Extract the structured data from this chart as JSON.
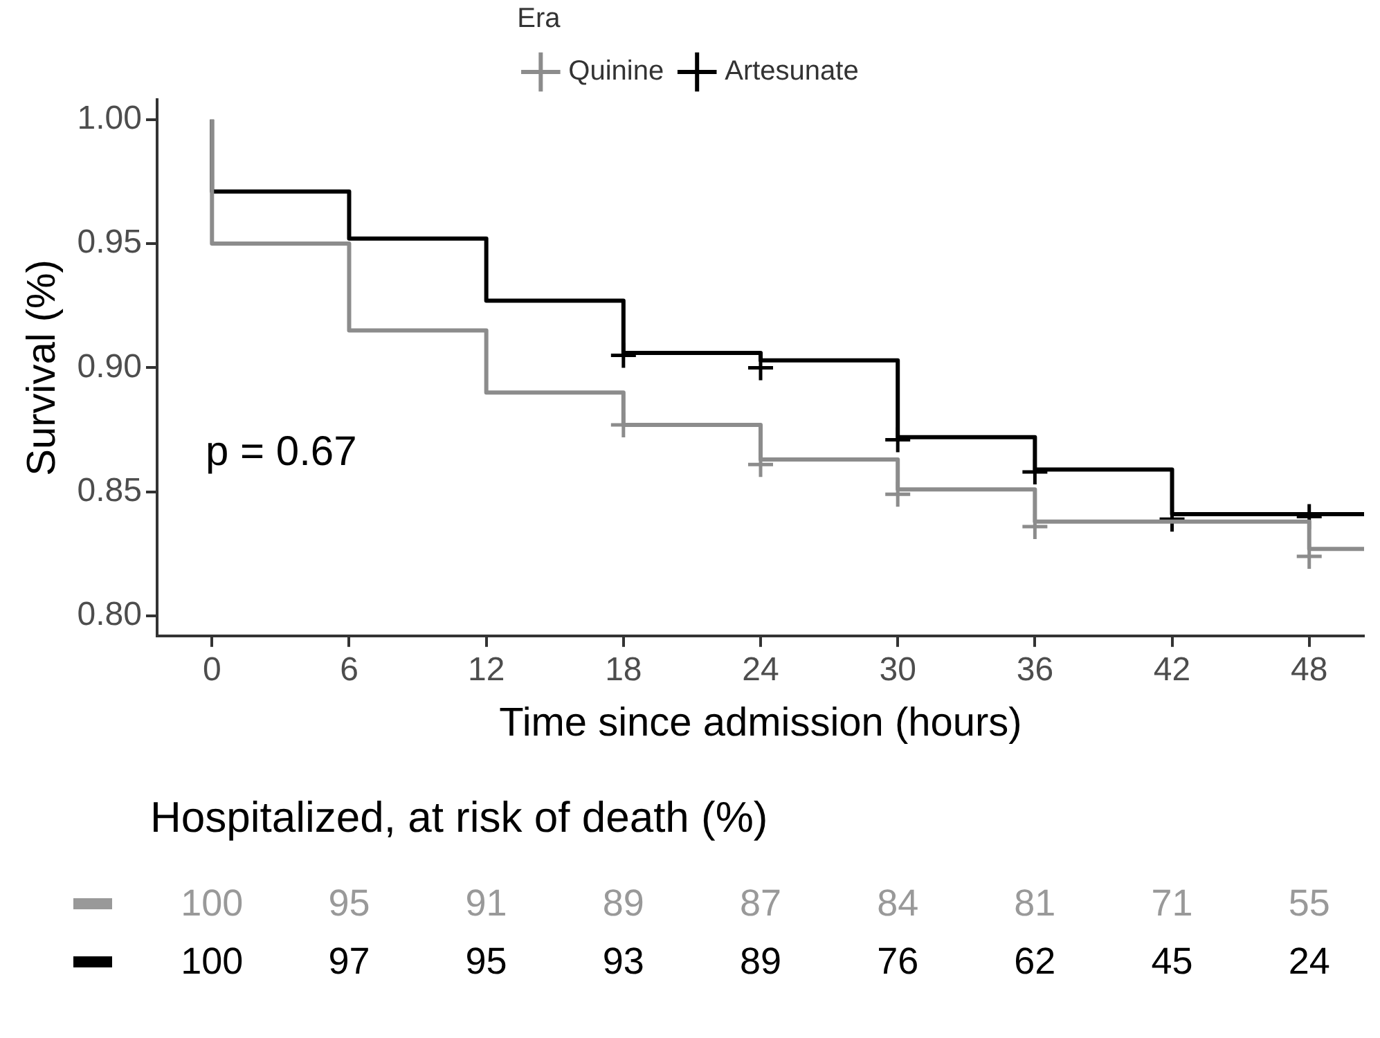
{
  "chart_data": [
    {
      "type": "step",
      "xlabel": "Time since admission (hours)",
      "ylabel": "Survival (%)",
      "legend_title": "Era",
      "legend": "top",
      "grid": false,
      "annotations": [
        "p = 0.67"
      ],
      "xlim": [
        -2.4,
        50.4
      ],
      "xticks": [
        0,
        6,
        12,
        18,
        24,
        30,
        36,
        42,
        48
      ],
      "ylim": [
        0.792,
        1.008
      ],
      "yticks": [
        {
          "value": 0.8,
          "label": "0.80"
        },
        {
          "value": 0.85,
          "label": "0.85"
        },
        {
          "value": 0.9,
          "label": "0.90"
        },
        {
          "value": 0.95,
          "label": "0.95"
        },
        {
          "value": 1.0,
          "label": "1.00"
        }
      ],
      "series": [
        {
          "name": "Quinine",
          "color": "#8c8c8c",
          "x": [
            0,
            0,
            6,
            12,
            18,
            24,
            30,
            36,
            48,
            50.4
          ],
          "values": [
            1.0,
            0.95,
            0.915,
            0.89,
            0.877,
            0.863,
            0.851,
            0.838,
            0.827,
            0.827
          ]
        },
        {
          "name": "Artesunate",
          "color": "#000000",
          "x": [
            0,
            0,
            6,
            12,
            18,
            24,
            30,
            36,
            42,
            48,
            50.4
          ],
          "values": [
            1.0,
            0.971,
            0.952,
            0.927,
            0.906,
            0.903,
            0.872,
            0.859,
            0.841,
            0.841,
            0.841
          ]
        },
        {
          "type": "scatter",
          "marker": "cross",
          "color": "#8c8c8c",
          "x": [
            18,
            24,
            30,
            36,
            48
          ],
          "values": [
            0.877,
            0.861,
            0.849,
            0.836,
            0.824
          ]
        },
        {
          "type": "scatter",
          "marker": "cross",
          "color": "#000000",
          "x": [
            18,
            24,
            30,
            36,
            42,
            48
          ],
          "values": [
            0.905,
            0.9,
            0.871,
            0.858,
            0.839,
            0.84
          ]
        }
      ]
    },
    {
      "type": "other",
      "title": "Hospitalized, at risk of death (%)",
      "annotations": [
        "100",
        "95",
        "91",
        "89",
        "87",
        "84",
        "81",
        "71",
        "55",
        "100",
        "97",
        "95",
        "93",
        "89",
        "76",
        "62",
        "45",
        "24"
      ]
    }
  ]
}
